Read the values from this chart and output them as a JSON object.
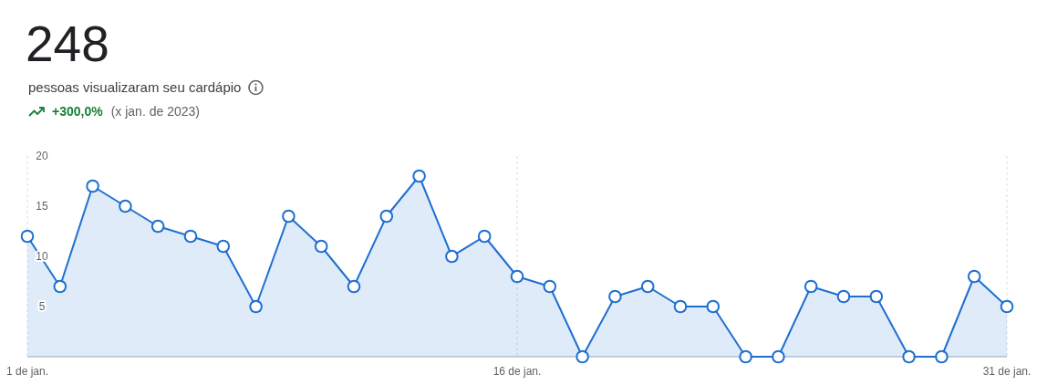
{
  "chart_data": {
    "type": "area",
    "title": "248",
    "subtitle": "pessoas visualizaram seu cardápio",
    "annotations": [
      "+300,0%",
      "(x jan. de 2023)"
    ],
    "x": [
      "--01-01",
      "--01-02",
      "--01-03",
      "--01-04",
      "--01-05",
      "--01-06",
      "--01-07",
      "--01-08",
      "--01-09",
      "--01-10",
      "--01-11",
      "--01-12",
      "--01-13",
      "--01-14",
      "--01-15",
      "--01-16",
      "--01-17",
      "--01-18",
      "--01-19",
      "--01-20",
      "--01-21",
      "--01-22",
      "--01-23",
      "--01-24",
      "--01-25",
      "--01-26",
      "--01-27",
      "--01-28",
      "--01-29",
      "--01-30",
      "--01-31"
    ],
    "values": [
      12,
      7,
      17,
      15,
      13,
      12,
      11,
      5,
      14,
      11,
      7,
      14,
      18,
      10,
      12,
      8,
      7,
      0,
      6,
      7,
      5,
      5,
      0,
      0,
      7,
      6,
      6,
      0,
      0,
      8,
      5
    ],
    "color": "#1f6fd1",
    "xlim": [
      "--01-01",
      "--01-31"
    ],
    "xticks": [
      {
        "value": "--01-01",
        "label": "1 de jan."
      },
      {
        "value": "--01-16",
        "label": "16 de jan."
      },
      {
        "value": "--01-31",
        "label": "31 de jan."
      }
    ],
    "ylim": [
      0,
      20
    ],
    "yticks": [
      5,
      10,
      15,
      20
    ],
    "grid": "x",
    "marker": "circle",
    "line_style": "solid"
  }
}
